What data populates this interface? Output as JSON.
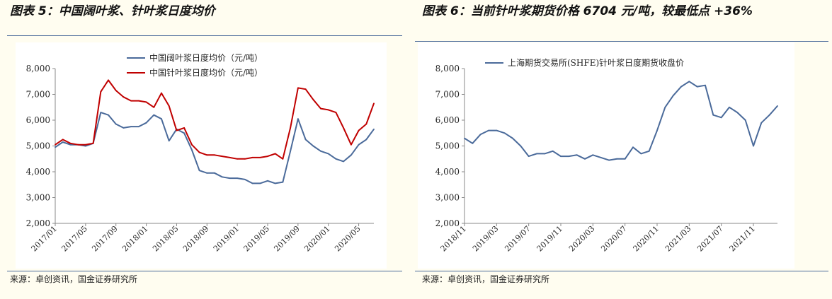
{
  "left": {
    "title": "图表 5：中国阔叶浆、针叶浆日度均价",
    "source": "来源：卓创资讯，国金证券研究所"
  },
  "right": {
    "title": "图表 6：当前针叶浆期货价格 6704 元/吨，较最低点 +36%",
    "source": "来源：卓创资讯，国金证券研究所"
  },
  "chart_data": [
    {
      "type": "line",
      "title": "",
      "xlabel": "",
      "ylabel": "",
      "ylim": [
        2000,
        8000
      ],
      "yticks": [
        "8,000",
        "7,000",
        "6,000",
        "5,000",
        "4,000",
        "3,000",
        "2,000"
      ],
      "xticks": [
        "2017/01",
        "2017/05",
        "2017/09",
        "2018/01",
        "2018/05",
        "2018/09",
        "2019/01",
        "2019/05",
        "2019/09",
        "2020/01",
        "2020/05"
      ],
      "x": [
        "2017/01",
        "2017/02",
        "2017/03",
        "2017/04",
        "2017/05",
        "2017/06",
        "2017/07",
        "2017/08",
        "2017/09",
        "2017/10",
        "2017/11",
        "2017/12",
        "2018/01",
        "2018/02",
        "2018/03",
        "2018/04",
        "2018/05",
        "2018/06",
        "2018/07",
        "2018/08",
        "2018/09",
        "2018/10",
        "2018/11",
        "2018/12",
        "2019/01",
        "2019/02",
        "2019/03",
        "2019/04",
        "2019/05",
        "2019/06",
        "2019/07",
        "2019/08",
        "2019/09",
        "2019/10",
        "2019/11",
        "2019/12",
        "2020/01",
        "2020/02",
        "2020/03",
        "2020/04",
        "2020/05",
        "2020/06",
        "2020/07"
      ],
      "series": [
        {
          "name": "中国阔叶浆日度均价（元/吨）",
          "color": "#4a6a9a",
          "values": [
            4950,
            5150,
            5050,
            5050,
            5000,
            5100,
            6300,
            6200,
            5850,
            5700,
            5750,
            5750,
            5900,
            6200,
            6050,
            5200,
            5650,
            5500,
            4850,
            4050,
            3950,
            3950,
            3800,
            3750,
            3750,
            3700,
            3550,
            3550,
            3650,
            3550,
            3600,
            4800,
            6050,
            5250,
            5000,
            4800,
            4700,
            4500,
            4400,
            4650,
            5050,
            5250,
            5650
          ]
        },
        {
          "name": "中国针叶浆日度均价（元/吨）",
          "color": "#c00000",
          "values": [
            5050,
            5250,
            5100,
            5050,
            5050,
            5100,
            7100,
            7550,
            7150,
            6900,
            6750,
            6750,
            6700,
            6500,
            7050,
            6550,
            5600,
            5700,
            5050,
            4750,
            4650,
            4650,
            4600,
            4550,
            4500,
            4500,
            4550,
            4550,
            4600,
            4700,
            4500,
            5700,
            7250,
            7200,
            6800,
            6450,
            6400,
            6300,
            5700,
            5050,
            5600,
            5850,
            6650
          ]
        }
      ],
      "legend": "top-center"
    },
    {
      "type": "line",
      "title": "",
      "xlabel": "",
      "ylabel": "",
      "ylim": [
        2000,
        8000
      ],
      "yticks": [
        "8,000",
        "7,000",
        "6,000",
        "5,000",
        "4,000",
        "3,000",
        "2,000"
      ],
      "xticks": [
        "2018/11",
        "2019/03",
        "2019/07",
        "2019/11",
        "2020/03",
        "2020/07",
        "2020/11",
        "2021/03",
        "2021/07",
        "2021/11"
      ],
      "x": [
        "2018/11",
        "2018/12",
        "2019/01",
        "2019/02",
        "2019/03",
        "2019/04",
        "2019/05",
        "2019/06",
        "2019/07",
        "2019/08",
        "2019/09",
        "2019/10",
        "2019/11",
        "2019/12",
        "2020/01",
        "2020/02",
        "2020/03",
        "2020/04",
        "2020/05",
        "2020/06",
        "2020/07",
        "2020/08",
        "2020/09",
        "2020/10",
        "2020/11",
        "2020/12",
        "2021/01",
        "2021/02",
        "2021/03",
        "2021/04",
        "2021/05",
        "2021/06",
        "2021/07",
        "2021/08",
        "2021/09",
        "2021/10",
        "2021/11",
        "2021/12",
        "2022/01",
        "2022/02"
      ],
      "series": [
        {
          "name": "上海期货交易所(SHFE)针叶浆日度期货收盘价",
          "color": "#4a6a9a",
          "values": [
            5300,
            5100,
            5450,
            5600,
            5600,
            5500,
            5300,
            5000,
            4600,
            4700,
            4700,
            4800,
            4600,
            4600,
            4650,
            4500,
            4650,
            4550,
            4450,
            4500,
            4500,
            4950,
            4700,
            4800,
            5600,
            6500,
            6950,
            7300,
            7500,
            7300,
            7350,
            6200,
            6100,
            6500,
            6300,
            6000,
            5000,
            5900,
            6200,
            6550
          ]
        }
      ],
      "legend": "top-left"
    }
  ]
}
